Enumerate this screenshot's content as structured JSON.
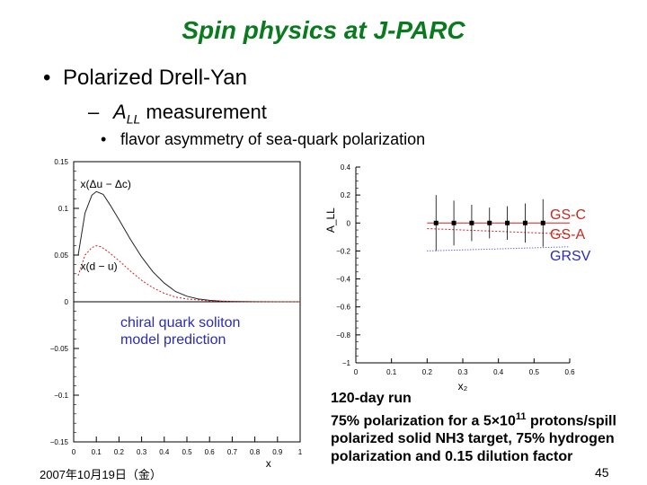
{
  "slide": {
    "title": "Spin physics at J-PARC",
    "bullet1": "Polarized Drell-Yan",
    "bullet2_symbol": "A",
    "bullet2_sub": "LL",
    "bullet2_rest": " measurement",
    "bullet3": "flavor asymmetry of sea-quark polarization",
    "soliton_label": [
      "chiral quark soliton",
      "model prediction"
    ],
    "curve_labels": [
      "GS-C",
      "GS-A",
      "GRSV"
    ],
    "note_lines": [
      "120-day run",
      "75% polarization for a 5×10",
      "11",
      " protons/spill",
      "polarized solid NH3 target, 75% hydrogen",
      "polarization and 0.15 dilution factor"
    ],
    "date": "2007年10月19日（金）",
    "page_number": "45"
  },
  "chart_data": [
    {
      "type": "line",
      "xlabel": "x",
      "ylabel": "",
      "xlim": [
        0,
        1
      ],
      "ylim": [
        -0.15,
        0.15
      ],
      "x_ticks": [
        "0",
        "0.1",
        "0.2",
        "0.3",
        "0.4",
        "0.5",
        "0.6",
        "0.7",
        "0.8",
        "0.9",
        "1"
      ],
      "y_ticks": [
        "0.15",
        "0.1",
        "0.05",
        "0",
        "−0.05",
        "−0.1",
        "−0.15"
      ],
      "annotations": [
        "x(Δu − Δc)",
        "x(d − u)"
      ],
      "series": [
        {
          "name": "x(Δu − Δc)",
          "x": [
            0.02,
            0.05,
            0.08,
            0.1,
            0.13,
            0.16,
            0.2,
            0.25,
            0.3,
            0.35,
            0.4,
            0.45,
            0.5,
            0.55,
            0.6,
            0.65,
            0.7,
            0.8,
            0.9,
            1.0
          ],
          "y": [
            0.05,
            0.095,
            0.114,
            0.118,
            0.115,
            0.104,
            0.088,
            0.067,
            0.048,
            0.032,
            0.02,
            0.011,
            0.006,
            0.003,
            0.0015,
            0.0008,
            0.0004,
            0.0001,
            0.0,
            0.0
          ]
        },
        {
          "name": "x(d − u)",
          "x": [
            0.02,
            0.05,
            0.08,
            0.1,
            0.12,
            0.15,
            0.2,
            0.25,
            0.3,
            0.35,
            0.4,
            0.45,
            0.5,
            0.6,
            0.7,
            0.8,
            1.0
          ],
          "y": [
            0.028,
            0.05,
            0.058,
            0.06,
            0.059,
            0.054,
            0.044,
            0.033,
            0.023,
            0.015,
            0.009,
            0.005,
            0.003,
            0.001,
            0.0003,
            0.0,
            0.0
          ]
        }
      ]
    },
    {
      "type": "scatter",
      "xlabel": "x₂",
      "ylabel": "A_LL",
      "xlim": [
        0,
        0.6
      ],
      "ylim": [
        -1,
        0.4
      ],
      "x_ticks": [
        "0",
        "0.1",
        "0.2",
        "0.3",
        "0.4",
        "0.5",
        "0.6"
      ],
      "y_ticks": [
        "0.4",
        "0.2",
        "0",
        "−0.2",
        "−0.4",
        "−0.6",
        "−0.8",
        "−1"
      ],
      "points": {
        "x": [
          0.225,
          0.275,
          0.325,
          0.375,
          0.425,
          0.475,
          0.525
        ],
        "y": [
          0,
          0,
          0,
          0,
          0,
          0,
          0
        ],
        "err": [
          0.2,
          0.16,
          0.13,
          0.11,
          0.12,
          0.14,
          0.17
        ]
      },
      "series": [
        {
          "name": "GS-C",
          "x": [
            0.2,
            0.6
          ],
          "y": [
            0.0,
            0.0
          ]
        },
        {
          "name": "GS-A",
          "x": [
            0.2,
            0.6
          ],
          "y": [
            -0.04,
            -0.08
          ]
        },
        {
          "name": "GRSV",
          "x": [
            0.2,
            0.6
          ],
          "y": [
            -0.2,
            -0.17
          ]
        }
      ]
    }
  ],
  "colors": {
    "title": "#0a7a1e",
    "label_blue": "#2b2bb5",
    "label_red": "#c8281e",
    "curve_black": "#222222",
    "curve_red": "#d02020",
    "curve_blue": "#2b2bb5"
  }
}
